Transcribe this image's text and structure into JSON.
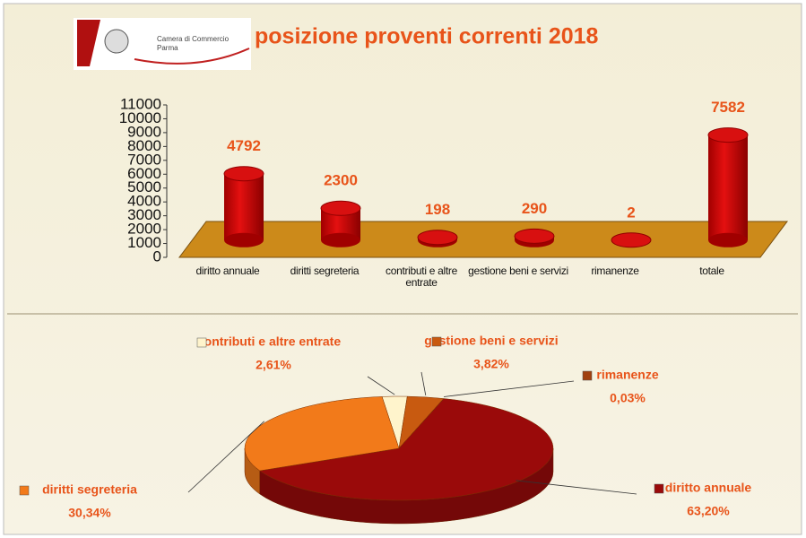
{
  "logo": {
    "line1": "Camera di Commercio",
    "line2": "Parma"
  },
  "chart_data": [
    {
      "type": "bar",
      "title": "posizione proventi correnti 2018",
      "categories": [
        "diritto annuale",
        "diritti segreteria",
        "contributi e altre entrate",
        "gestione beni e servizi",
        "rimanenze",
        "totale"
      ],
      "values": [
        4792,
        2300,
        198,
        290,
        2,
        7582
      ],
      "color": "#d40000",
      "ylim": [
        0,
        11000
      ],
      "yticks": [
        0,
        1000,
        2000,
        3000,
        4000,
        5000,
        6000,
        7000,
        8000,
        9000,
        10000,
        11000
      ]
    },
    {
      "type": "pie",
      "categories": [
        "contributi e altre entrate",
        "gestione beni e servizi",
        "rimanenze",
        "diritto annuale",
        "diritti segreteria"
      ],
      "values": [
        2.61,
        3.82,
        0.03,
        63.2,
        30.34
      ],
      "value_labels": [
        "2,61%",
        "3,82%",
        "0,03%",
        "63,20%",
        "30,34%"
      ],
      "colors": [
        "#fff4cc",
        "#c85a10",
        "#a04010",
        "#9a0a0a",
        "#f27a1a"
      ]
    }
  ]
}
